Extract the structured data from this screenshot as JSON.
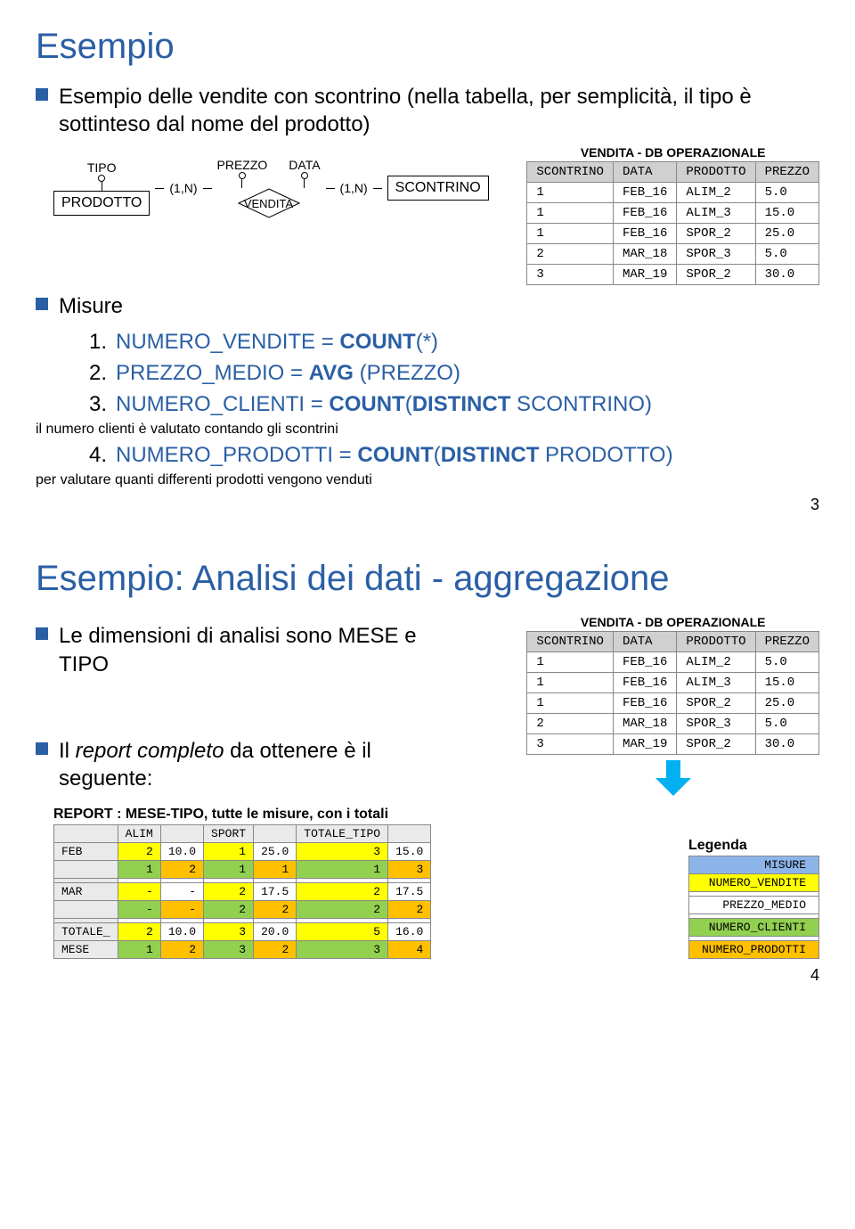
{
  "section1": {
    "title": "Esempio",
    "intro": "Esempio delle vendite con scontrino (nella tabella, per semplicità, il tipo è sottinteso dal nome del prodotto)",
    "er": {
      "prodotto": "PRODOTTO",
      "tipo": "TIPO",
      "prezzo": "PREZZO",
      "data": "DATA",
      "vendita": "VENDITA",
      "scontrino": "SCONTRINO",
      "card": "(1,N)"
    },
    "db": {
      "label": "VENDITA - DB OPERAZIONALE",
      "cols": [
        "SCONTRINO",
        "DATA",
        "PRODOTTO",
        "PREZZO"
      ],
      "rows": [
        [
          "1",
          "FEB_16",
          "ALIM_2",
          "5.0"
        ],
        [
          "1",
          "FEB_16",
          "ALIM_3",
          "15.0"
        ],
        [
          "1",
          "FEB_16",
          "SPOR_2",
          "25.0"
        ],
        [
          "2",
          "MAR_18",
          "SPOR_3",
          "5.0"
        ],
        [
          "3",
          "MAR_19",
          "SPOR_2",
          "30.0"
        ]
      ]
    },
    "misure": "Misure",
    "items": [
      {
        "n": "1.",
        "pre": "NUMERO_VENDITE = ",
        "bold": "COUNT",
        "post": "(*)"
      },
      {
        "n": "2.",
        "pre": "PREZZO_MEDIO = ",
        "bold": "AVG ",
        "post": "(PREZZO)"
      },
      {
        "n": "3.",
        "pre": "NUMERO_CLIENTI = ",
        "bold": "COUNT",
        "post": "(",
        "bold2": "DISTINCT",
        "post2": " SCONTRINO)",
        "sub": "il numero clienti è valutato contando gli scontrini"
      },
      {
        "n": "4.",
        "pre": "NUMERO_PRODOTTI = ",
        "bold": "COUNT",
        "post": "(",
        "bold2": "DISTINCT",
        "post2": " PRODOTTO)",
        "sub": "per valutare quanti differenti prodotti vengono venduti"
      }
    ],
    "page": "3"
  },
  "section2": {
    "title": "Esempio: Analisi dei dati - aggregazione",
    "b1": "Le dimensioni di analisi sono MESE e TIPO",
    "b2pre": "Il ",
    "b2ital": "report completo",
    "b2post": " da ottenere è il seguente:",
    "db": {
      "label": "VENDITA - DB OPERAZIONALE",
      "cols": [
        "SCONTRINO",
        "DATA",
        "PRODOTTO",
        "PREZZO"
      ],
      "rows": [
        [
          "1",
          "FEB_16",
          "ALIM_2",
          "5.0"
        ],
        [
          "1",
          "FEB_16",
          "ALIM_3",
          "15.0"
        ],
        [
          "1",
          "FEB_16",
          "SPOR_2",
          "25.0"
        ],
        [
          "2",
          "MAR_18",
          "SPOR_3",
          "5.0"
        ],
        [
          "3",
          "MAR_19",
          "SPOR_2",
          "30.0"
        ]
      ]
    },
    "reportLabel": "REPORT : MESE-TIPO, tutte le misure, con i totali",
    "report": {
      "cols": [
        "",
        "ALIM",
        "",
        "SPORT",
        "",
        "TOTALE_TIPO",
        ""
      ],
      "rows": [
        {
          "hdr": "FEB",
          "cells": [
            {
              "v": "2",
              "c": "y"
            },
            {
              "v": "10.0",
              "c": ""
            },
            {
              "v": "1",
              "c": "y"
            },
            {
              "v": "25.0",
              "c": ""
            },
            {
              "v": "3",
              "c": "y"
            },
            {
              "v": "15.0",
              "c": ""
            }
          ]
        },
        {
          "hdr": "",
          "cells": [
            {
              "v": "1",
              "c": "g"
            },
            {
              "v": "2",
              "c": "o"
            },
            {
              "v": "1",
              "c": "g"
            },
            {
              "v": "1",
              "c": "o"
            },
            {
              "v": "1",
              "c": "g"
            },
            {
              "v": "3",
              "c": "o"
            }
          ]
        },
        {
          "hdr": "",
          "cells": [
            {
              "v": "",
              "c": ""
            },
            {
              "v": "",
              "c": ""
            },
            {
              "v": "",
              "c": ""
            },
            {
              "v": "",
              "c": ""
            },
            {
              "v": "",
              "c": ""
            },
            {
              "v": "",
              "c": ""
            }
          ]
        },
        {
          "hdr": "MAR",
          "cells": [
            {
              "v": "-",
              "c": "y"
            },
            {
              "v": "-",
              "c": ""
            },
            {
              "v": "2",
              "c": "y"
            },
            {
              "v": "17.5",
              "c": ""
            },
            {
              "v": "2",
              "c": "y"
            },
            {
              "v": "17.5",
              "c": ""
            }
          ]
        },
        {
          "hdr": "",
          "cells": [
            {
              "v": "-",
              "c": "g"
            },
            {
              "v": "-",
              "c": "o"
            },
            {
              "v": "2",
              "c": "g"
            },
            {
              "v": "2",
              "c": "o"
            },
            {
              "v": "2",
              "c": "g"
            },
            {
              "v": "2",
              "c": "o"
            }
          ]
        },
        {
          "hdr": "",
          "cells": [
            {
              "v": "",
              "c": ""
            },
            {
              "v": "",
              "c": ""
            },
            {
              "v": "",
              "c": ""
            },
            {
              "v": "",
              "c": ""
            },
            {
              "v": "",
              "c": ""
            },
            {
              "v": "",
              "c": ""
            }
          ]
        },
        {
          "hdr": "TOTALE_",
          "cells": [
            {
              "v": "2",
              "c": "y"
            },
            {
              "v": "10.0",
              "c": ""
            },
            {
              "v": "3",
              "c": "y"
            },
            {
              "v": "20.0",
              "c": ""
            },
            {
              "v": "5",
              "c": "y"
            },
            {
              "v": "16.0",
              "c": ""
            }
          ]
        },
        {
          "hdr": "MESE",
          "cells": [
            {
              "v": "1",
              "c": "g"
            },
            {
              "v": "2",
              "c": "o"
            },
            {
              "v": "3",
              "c": "g"
            },
            {
              "v": "2",
              "c": "o"
            },
            {
              "v": "3",
              "c": "g"
            },
            {
              "v": "4",
              "c": "o"
            }
          ]
        }
      ]
    },
    "legendLabel": "Legenda",
    "legend": [
      {
        "v": "MISURE",
        "c": "b"
      },
      {
        "v": "NUMERO_VENDITE",
        "c": "y"
      },
      {
        "v": "",
        "c": ""
      },
      {
        "v": "PREZZO_MEDIO",
        "c": ""
      },
      {
        "v": "",
        "c": ""
      },
      {
        "v": "NUMERO_CLIENTI",
        "c": "g"
      },
      {
        "v": "",
        "c": ""
      },
      {
        "v": "NUMERO_PRODOTTI",
        "c": "o"
      }
    ],
    "page": "4"
  }
}
